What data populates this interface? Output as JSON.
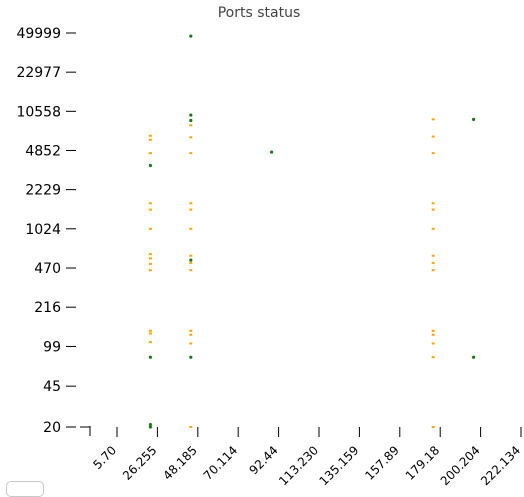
{
  "chart_data": {
    "type": "scatter",
    "title": "Ports status",
    "xlabel": "",
    "ylabel": "",
    "y_scale": "log",
    "x_ticks": [
      "5.70",
      "26.255",
      "48.185",
      "70.114",
      "92.44",
      "113.230",
      "135.159",
      "157.89",
      "179.18",
      "200.204",
      "222.134"
    ],
    "y_ticks": [
      49999,
      22977,
      10558,
      4852,
      2229,
      1024,
      470,
      216,
      99,
      45,
      20
    ],
    "grid": false,
    "legend": "none",
    "series": [
      {
        "color": "#ffa500",
        "points": [
          {
            "x": "26.255",
            "y": 6500
          },
          {
            "x": "26.255",
            "y": 6000
          },
          {
            "x": "26.255",
            "y": 4600
          },
          {
            "x": "26.255",
            "y": 1700
          },
          {
            "x": "26.255",
            "y": 1500
          },
          {
            "x": "26.255",
            "y": 1024
          },
          {
            "x": "26.255",
            "y": 620
          },
          {
            "x": "26.255",
            "y": 570
          },
          {
            "x": "26.255",
            "y": 510
          },
          {
            "x": "26.255",
            "y": 450
          },
          {
            "x": "26.255",
            "y": 135
          },
          {
            "x": "26.255",
            "y": 128
          },
          {
            "x": "26.255",
            "y": 108
          },
          {
            "x": "48.185",
            "y": 8000
          },
          {
            "x": "48.185",
            "y": 6300
          },
          {
            "x": "48.185",
            "y": 4600
          },
          {
            "x": "48.185",
            "y": 1700
          },
          {
            "x": "48.185",
            "y": 1500
          },
          {
            "x": "48.185",
            "y": 1024
          },
          {
            "x": "48.185",
            "y": 600
          },
          {
            "x": "48.185",
            "y": 520
          },
          {
            "x": "48.185",
            "y": 450
          },
          {
            "x": "48.185",
            "y": 135
          },
          {
            "x": "48.185",
            "y": 125
          },
          {
            "x": "48.185",
            "y": 105
          },
          {
            "x": "48.185",
            "y": 20
          },
          {
            "x": "179.18",
            "y": 9000
          },
          {
            "x": "179.18",
            "y": 6400
          },
          {
            "x": "179.18",
            "y": 4600
          },
          {
            "x": "179.18",
            "y": 1700
          },
          {
            "x": "179.18",
            "y": 1500
          },
          {
            "x": "179.18",
            "y": 1024
          },
          {
            "x": "179.18",
            "y": 600
          },
          {
            "x": "179.18",
            "y": 520
          },
          {
            "x": "179.18",
            "y": 450
          },
          {
            "x": "179.18",
            "y": 135
          },
          {
            "x": "179.18",
            "y": 125
          },
          {
            "x": "179.18",
            "y": 105
          },
          {
            "x": "179.18",
            "y": 80
          },
          {
            "x": "179.18",
            "y": 20
          }
        ]
      },
      {
        "color": "#1a7a1a",
        "points": [
          {
            "x": "26.255",
            "y": 3600
          },
          {
            "x": "26.255",
            "y": 80
          },
          {
            "x": "26.255",
            "y": 21
          },
          {
            "x": "26.255",
            "y": 20
          },
          {
            "x": "48.185",
            "y": 47000
          },
          {
            "x": "48.185",
            "y": 9800
          },
          {
            "x": "48.185",
            "y": 8800
          },
          {
            "x": "48.185",
            "y": 550
          },
          {
            "x": "48.185",
            "y": 80
          },
          {
            "x": "92.44",
            "y": 4700
          },
          {
            "x": "200.204",
            "y": 9000
          },
          {
            "x": "200.204",
            "y": 80
          }
        ]
      }
    ]
  }
}
